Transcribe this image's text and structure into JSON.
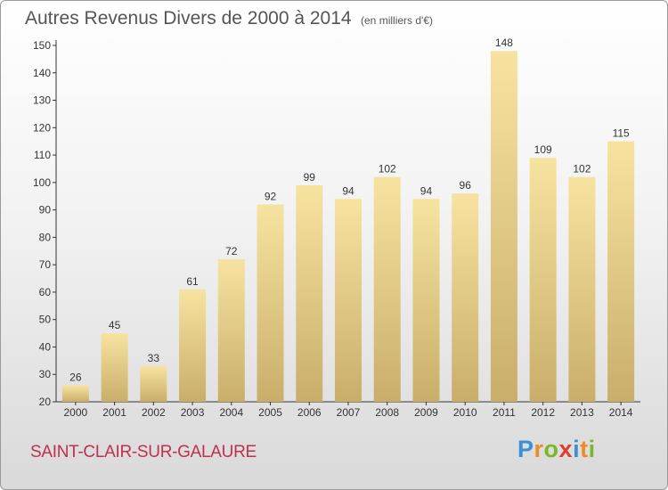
{
  "title": "Autres Revenus Divers de 2000 à 2014",
  "subtitle": "(en milliers d'€)",
  "commune": "SAINT-CLAIR-SUR-GALAURE",
  "logo": {
    "letters": [
      "P",
      "r",
      "o",
      "x",
      "i",
      "t",
      "i"
    ],
    "colors": [
      "#3a8fd6",
      "#f08a24",
      "#7ab829",
      "#e23a2e",
      "#3a8fd6",
      "#f08a24",
      "#7ab829"
    ]
  },
  "colors": {
    "bar_light": "#f7e3a0",
    "bar_dark": "#c9ae6a",
    "text": "#555555",
    "accent": "#c0304f"
  },
  "chart_data": {
    "type": "bar",
    "title": "Autres Revenus Divers de 2000 à 2014",
    "subtitle": "(en milliers d'€)",
    "categories": [
      "2000",
      "2001",
      "2002",
      "2003",
      "2004",
      "2005",
      "2006",
      "2007",
      "2008",
      "2009",
      "2010",
      "2011",
      "2012",
      "2013",
      "2014"
    ],
    "values": [
      26,
      45,
      33,
      61,
      72,
      92,
      99,
      94,
      102,
      94,
      96,
      148,
      109,
      102,
      115
    ],
    "ylim": [
      20,
      150
    ],
    "yticks": [
      20,
      30,
      40,
      50,
      60,
      70,
      80,
      90,
      100,
      110,
      120,
      130,
      140,
      150
    ],
    "grid": false,
    "legend": "none"
  }
}
